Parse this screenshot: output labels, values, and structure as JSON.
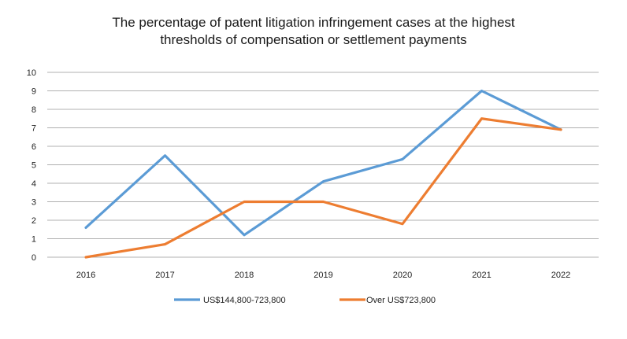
{
  "chart_data": {
    "type": "line",
    "title_line1": "The percentage of patent litigation infringement cases at the highest",
    "title_line2": "thresholds of compensation or settlement payments",
    "categories": [
      "2016",
      "2017",
      "2018",
      "2019",
      "2020",
      "2021",
      "2022"
    ],
    "series": [
      {
        "name": "US$144,800-723,800",
        "color": "#5b9bd5",
        "values": [
          1.6,
          5.5,
          1.2,
          4.1,
          5.3,
          9.0,
          6.9
        ]
      },
      {
        "name": "Over US$723,800",
        "color": "#ed7d31",
        "values": [
          0.0,
          0.7,
          3.0,
          3.0,
          1.8,
          7.5,
          6.9
        ]
      }
    ],
    "ylim": [
      0,
      10
    ],
    "yticks": [
      0,
      1,
      2,
      3,
      4,
      5,
      6,
      7,
      8,
      9,
      10
    ],
    "grid": true,
    "legend_position": "bottom",
    "xlabel": "",
    "ylabel": ""
  }
}
